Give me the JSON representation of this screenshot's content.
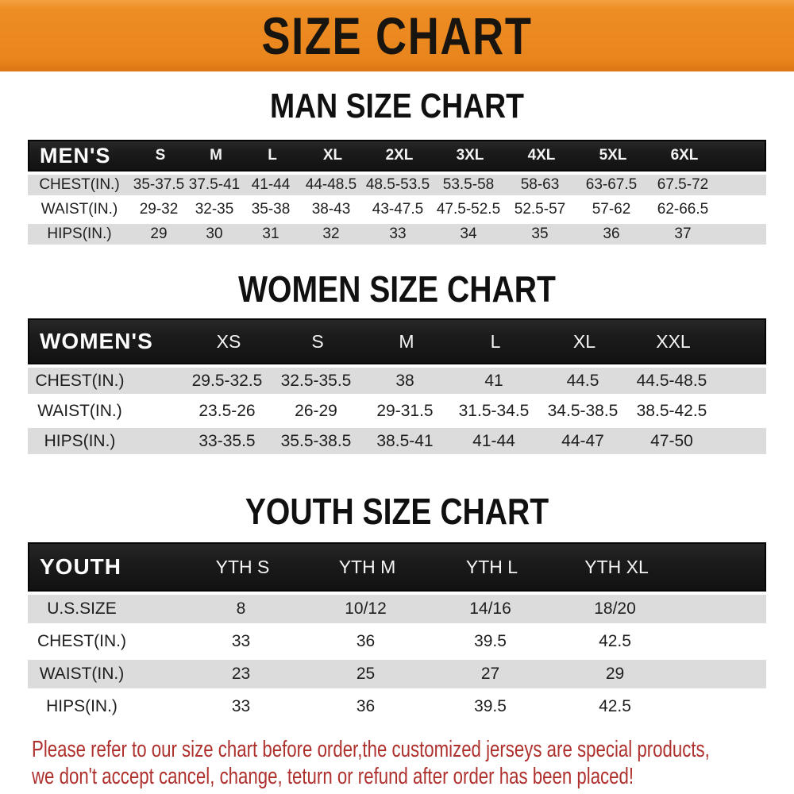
{
  "banner": {
    "title": "SIZE CHART",
    "bg_color": "#EC8820",
    "text_color": "#181410"
  },
  "chart_data": [
    {
      "type": "table",
      "title": "MAN SIZE CHART",
      "header_label": "MEN'S",
      "columns": [
        "S",
        "M",
        "L",
        "XL",
        "2XL",
        "3XL",
        "4XL",
        "5XL",
        "6XL"
      ],
      "rows": [
        {
          "label": "CHEST(IN.)",
          "values": [
            "35-37.5",
            "37.5-41",
            "41-44",
            "44-48.5",
            "48.5-53.5",
            "53.5-58",
            "58-63",
            "63-67.5",
            "67.5-72"
          ]
        },
        {
          "label": "WAIST(IN.)",
          "values": [
            "29-32",
            "32-35",
            "35-38",
            "38-43",
            "43-47.5",
            "47.5-52.5",
            "52.5-57",
            "57-62",
            "62-66.5"
          ]
        },
        {
          "label": "HIPS(IN.)",
          "values": [
            "29",
            "30",
            "31",
            "32",
            "33",
            "34",
            "35",
            "36",
            "37"
          ]
        }
      ]
    },
    {
      "type": "table",
      "title": "WOMEN SIZE CHART",
      "header_label": "WOMEN'S",
      "columns": [
        "XS",
        "S",
        "M",
        "L",
        "XL",
        "XXL"
      ],
      "rows": [
        {
          "label": "CHEST(IN.)",
          "values": [
            "29.5-32.5",
            "32.5-35.5",
            "38",
            "41",
            "44.5",
            "44.5-48.5"
          ]
        },
        {
          "label": "WAIST(IN.)",
          "values": [
            "23.5-26",
            "26-29",
            "29-31.5",
            "31.5-34.5",
            "34.5-38.5",
            "38.5-42.5"
          ]
        },
        {
          "label": "HIPS(IN.)",
          "values": [
            "33-35.5",
            "35.5-38.5",
            "38.5-41",
            "41-44",
            "44-47",
            "47-50"
          ]
        }
      ]
    },
    {
      "type": "table",
      "title": "YOUTH SIZE CHART",
      "header_label": "YOUTH",
      "columns": [
        "YTH S",
        "YTH M",
        "YTH L",
        "YTH XL"
      ],
      "rows": [
        {
          "label": "U.S.SIZE",
          "values": [
            "8",
            "10/12",
            "14/16",
            "18/20"
          ]
        },
        {
          "label": "CHEST(IN.)",
          "values": [
            "33",
            "36",
            "39.5",
            "42.5"
          ]
        },
        {
          "label": "WAIST(IN.)",
          "values": [
            "23",
            "25",
            "27",
            "29"
          ]
        },
        {
          "label": "HIPS(IN.)",
          "values": [
            "33",
            "36",
            "39.5",
            "42.5"
          ]
        }
      ]
    }
  ],
  "footer": {
    "line1": "Please refer to our size chart before order,the customized jerseys are special products,",
    "line2": "we don't accept cancel, change, teturn or refund after order has been placed!",
    "text_color": "#AE312E"
  },
  "colors": {
    "header_bar": "#1B1B1B",
    "row_shade": "#DCDCDC",
    "row_plain": "#FFFFFF"
  }
}
